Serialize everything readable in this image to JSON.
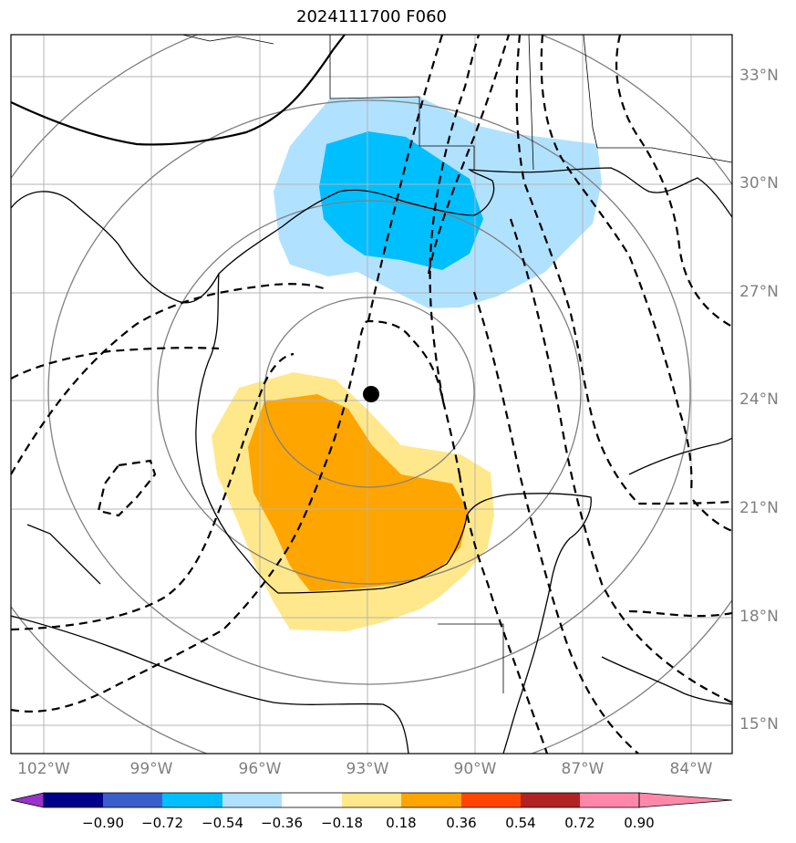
{
  "title": "2024111700 F060",
  "lat_labels": [
    "33°N",
    "30°N",
    "27°N",
    "24°N",
    "21°N",
    "18°N",
    "15°N"
  ],
  "lon_labels": [
    "102°W",
    "99°W",
    "96°W",
    "93°W",
    "90°W",
    "87°W",
    "84°W"
  ],
  "storm_center": {
    "lon": -92.9,
    "lat": 24.2
  },
  "colorbar": {
    "tick_labels": [
      "−0.90",
      "−0.72",
      "−0.54",
      "−0.36",
      "−0.18",
      "0.18",
      "0.36",
      "0.54",
      "0.72",
      "0.90"
    ],
    "colors": [
      "#9932cc",
      "#00008b",
      "#3a5fcd",
      "#00bfff",
      "#b0e2ff",
      "#ffffff",
      "#ffe88c",
      "#ffa500",
      "#ff4500",
      "#b22222",
      "#ff88aa"
    ]
  },
  "fill_colors": {
    "light_blue": "#b0e2ff",
    "blue": "#00bfff",
    "light_yellow": "#ffe88c",
    "orange": "#ffa500"
  }
}
